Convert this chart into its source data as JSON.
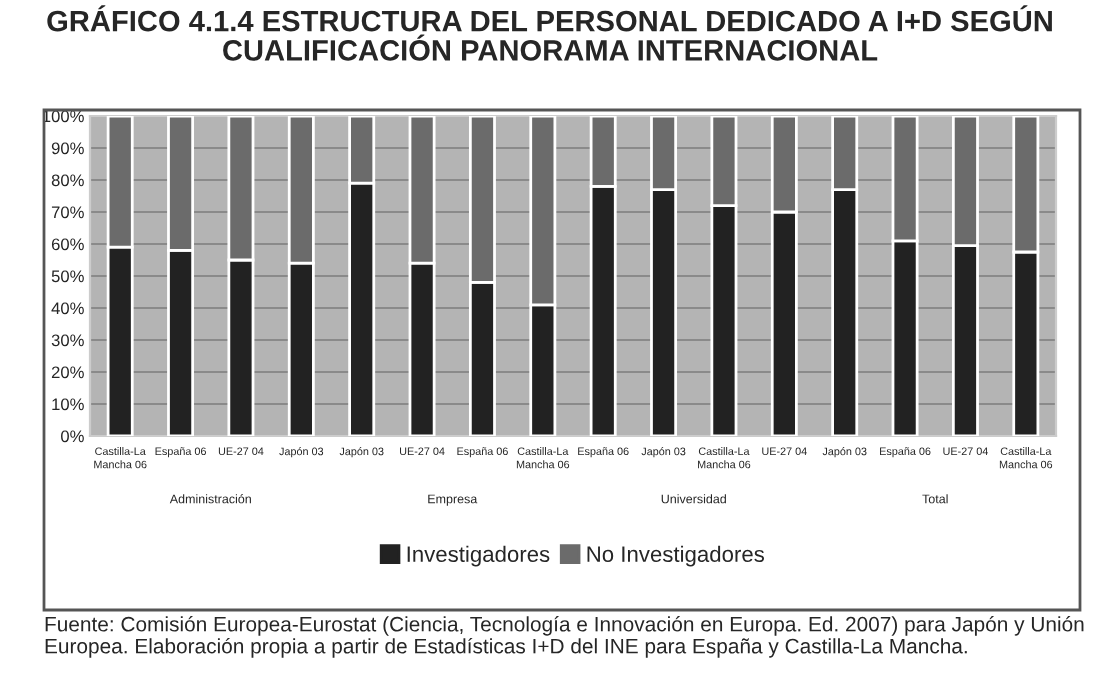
{
  "chart_data": {
    "type": "bar",
    "stacked": true,
    "title": "GRÁFICO 4.1.4 ESTRUCTURA DEL PERSONAL DEDICADO A I+D SEGÚN\nCUALIFICACIÓN PANORAMA INTERNACIONAL",
    "categories": [
      "Castilla-La\nMancha 06",
      "España 06",
      "UE-27 04",
      "Japón 03",
      "Japón 03",
      "UE-27 04",
      "España 06",
      "Castilla-La\nMancha 06",
      "España 06",
      "Japón 03",
      "Castilla-La\nMancha 06",
      "UE-27 04",
      "Japón 03",
      "España 06",
      "UE-27 04",
      "Castilla-La\nMancha 06"
    ],
    "series": [
      {
        "name": "Investigadores",
        "color": "#222222",
        "values": [
          59,
          58,
          55,
          54,
          79,
          54,
          48,
          41,
          78,
          77,
          72,
          70,
          77,
          61,
          59.5,
          57.5
        ]
      },
      {
        "name": "No Investigadores",
        "color": "#6b6b6b",
        "values": [
          41,
          42,
          45,
          46,
          21,
          46,
          52,
          59,
          22,
          23,
          28,
          30,
          23,
          39,
          40.5,
          42.5
        ]
      }
    ],
    "ylim": [
      0,
      100
    ],
    "yticks": [
      {
        "value": 0,
        "label": "0%"
      },
      {
        "value": 10,
        "label": "10%"
      },
      {
        "value": 20,
        "label": "20%"
      },
      {
        "value": 30,
        "label": "30%"
      },
      {
        "value": 40,
        "label": "40%"
      },
      {
        "value": 50,
        "label": "50%"
      },
      {
        "value": 60,
        "label": "60%"
      },
      {
        "value": 70,
        "label": "70%"
      },
      {
        "value": 80,
        "label": "80%"
      },
      {
        "value": 90,
        "label": "90%"
      },
      {
        "value": 100,
        "label": "100%"
      }
    ],
    "grid": "y",
    "legend": "bottom",
    "annotations": [
      "Administración",
      "Empresa",
      "Universidad",
      "Total",
      "Fuente: Comisión Europea-Eurostat (Ciencia, Tecnología e Innovación en Europa. Ed. 2007) para Japón y Unión Europea. Elaboración propia a partir de Estadísticas I+D del INE para España y Castilla-La Mancha."
    ]
  }
}
